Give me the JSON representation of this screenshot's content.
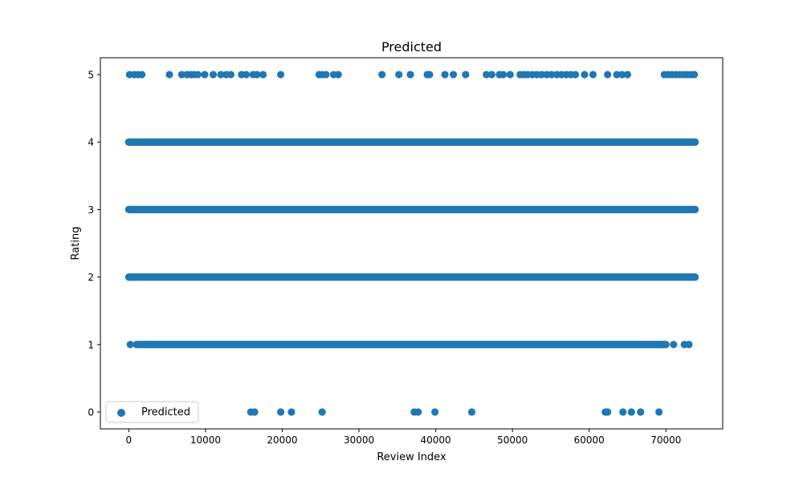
{
  "chart_data": {
    "type": "scatter",
    "title": "Predicted",
    "xlabel": "Review Index",
    "ylabel": "Rating",
    "xlim": [
      -3700,
      77400
    ],
    "ylim": [
      -0.25,
      5.25
    ],
    "xticks": [
      0,
      10000,
      20000,
      30000,
      40000,
      50000,
      60000,
      70000
    ],
    "yticks": [
      0,
      1,
      2,
      3,
      4,
      5
    ],
    "grid": false,
    "legend_position": "lower-left",
    "series": [
      {
        "name": "Predicted",
        "color": "#1f77b4",
        "dense_bands": [
          {
            "y": 4,
            "x_from": 0,
            "x_to": 73800
          },
          {
            "y": 3,
            "x_from": 0,
            "x_to": 73800
          },
          {
            "y": 2,
            "x_from": 0,
            "x_to": 73800
          },
          {
            "y": 1,
            "x_from": 1200,
            "x_to": 70000
          }
        ],
        "points": [
          {
            "x": 0,
            "y": 4
          },
          {
            "x": 73800,
            "y": 4
          },
          {
            "x": 100,
            "y": 3
          },
          {
            "x": 300,
            "y": 3
          },
          {
            "x": 73800,
            "y": 3
          },
          {
            "x": 100,
            "y": 2
          },
          {
            "x": 300,
            "y": 2
          },
          {
            "x": 73800,
            "y": 2
          },
          {
            "x": 200,
            "y": 1
          },
          {
            "x": 1000,
            "y": 1
          },
          {
            "x": 71000,
            "y": 1
          },
          {
            "x": 72400,
            "y": 1
          },
          {
            "x": 73000,
            "y": 1
          },
          {
            "x": 100,
            "y": 5
          },
          {
            "x": 700,
            "y": 5
          },
          {
            "x": 1200,
            "y": 5
          },
          {
            "x": 1700,
            "y": 5
          },
          {
            "x": 5300,
            "y": 5
          },
          {
            "x": 6900,
            "y": 5
          },
          {
            "x": 7600,
            "y": 5
          },
          {
            "x": 8100,
            "y": 5
          },
          {
            "x": 8500,
            "y": 5
          },
          {
            "x": 9000,
            "y": 5
          },
          {
            "x": 9900,
            "y": 5
          },
          {
            "x": 11000,
            "y": 5
          },
          {
            "x": 12000,
            "y": 5
          },
          {
            "x": 12700,
            "y": 5
          },
          {
            "x": 13300,
            "y": 5
          },
          {
            "x": 14700,
            "y": 5
          },
          {
            "x": 15300,
            "y": 5
          },
          {
            "x": 16200,
            "y": 5
          },
          {
            "x": 16700,
            "y": 5
          },
          {
            "x": 17500,
            "y": 5
          },
          {
            "x": 19800,
            "y": 5
          },
          {
            "x": 24800,
            "y": 5
          },
          {
            "x": 25200,
            "y": 5
          },
          {
            "x": 25700,
            "y": 5
          },
          {
            "x": 26700,
            "y": 5
          },
          {
            "x": 27300,
            "y": 5
          },
          {
            "x": 33000,
            "y": 5
          },
          {
            "x": 35200,
            "y": 5
          },
          {
            "x": 36700,
            "y": 5
          },
          {
            "x": 38900,
            "y": 5
          },
          {
            "x": 39200,
            "y": 5
          },
          {
            "x": 41200,
            "y": 5
          },
          {
            "x": 42300,
            "y": 5
          },
          {
            "x": 43900,
            "y": 5
          },
          {
            "x": 46600,
            "y": 5
          },
          {
            "x": 47300,
            "y": 5
          },
          {
            "x": 48300,
            "y": 5
          },
          {
            "x": 48800,
            "y": 5
          },
          {
            "x": 49700,
            "y": 5
          },
          {
            "x": 51000,
            "y": 5
          },
          {
            "x": 51500,
            "y": 5
          },
          {
            "x": 52000,
            "y": 5
          },
          {
            "x": 52600,
            "y": 5
          },
          {
            "x": 53200,
            "y": 5
          },
          {
            "x": 53800,
            "y": 5
          },
          {
            "x": 54500,
            "y": 5
          },
          {
            "x": 55100,
            "y": 5
          },
          {
            "x": 55800,
            "y": 5
          },
          {
            "x": 56400,
            "y": 5
          },
          {
            "x": 57000,
            "y": 5
          },
          {
            "x": 57600,
            "y": 5
          },
          {
            "x": 58200,
            "y": 5
          },
          {
            "x": 59400,
            "y": 5
          },
          {
            "x": 60500,
            "y": 5
          },
          {
            "x": 62400,
            "y": 5
          },
          {
            "x": 63600,
            "y": 5
          },
          {
            "x": 64300,
            "y": 5
          },
          {
            "x": 65000,
            "y": 5
          },
          {
            "x": 69800,
            "y": 5
          },
          {
            "x": 70300,
            "y": 5
          },
          {
            "x": 70800,
            "y": 5
          },
          {
            "x": 71300,
            "y": 5
          },
          {
            "x": 71800,
            "y": 5
          },
          {
            "x": 72300,
            "y": 5
          },
          {
            "x": 72800,
            "y": 5
          },
          {
            "x": 73300,
            "y": 5
          },
          {
            "x": 73700,
            "y": 5
          },
          {
            "x": 15900,
            "y": 0
          },
          {
            "x": 16400,
            "y": 0
          },
          {
            "x": 19800,
            "y": 0
          },
          {
            "x": 21200,
            "y": 0
          },
          {
            "x": 25200,
            "y": 0
          },
          {
            "x": 37200,
            "y": 0
          },
          {
            "x": 37700,
            "y": 0
          },
          {
            "x": 39900,
            "y": 0
          },
          {
            "x": 44700,
            "y": 0
          },
          {
            "x": 62100,
            "y": 0
          },
          {
            "x": 62400,
            "y": 0
          },
          {
            "x": 64400,
            "y": 0
          },
          {
            "x": 65500,
            "y": 0
          },
          {
            "x": 66700,
            "y": 0
          },
          {
            "x": 69100,
            "y": 0
          }
        ]
      }
    ]
  }
}
